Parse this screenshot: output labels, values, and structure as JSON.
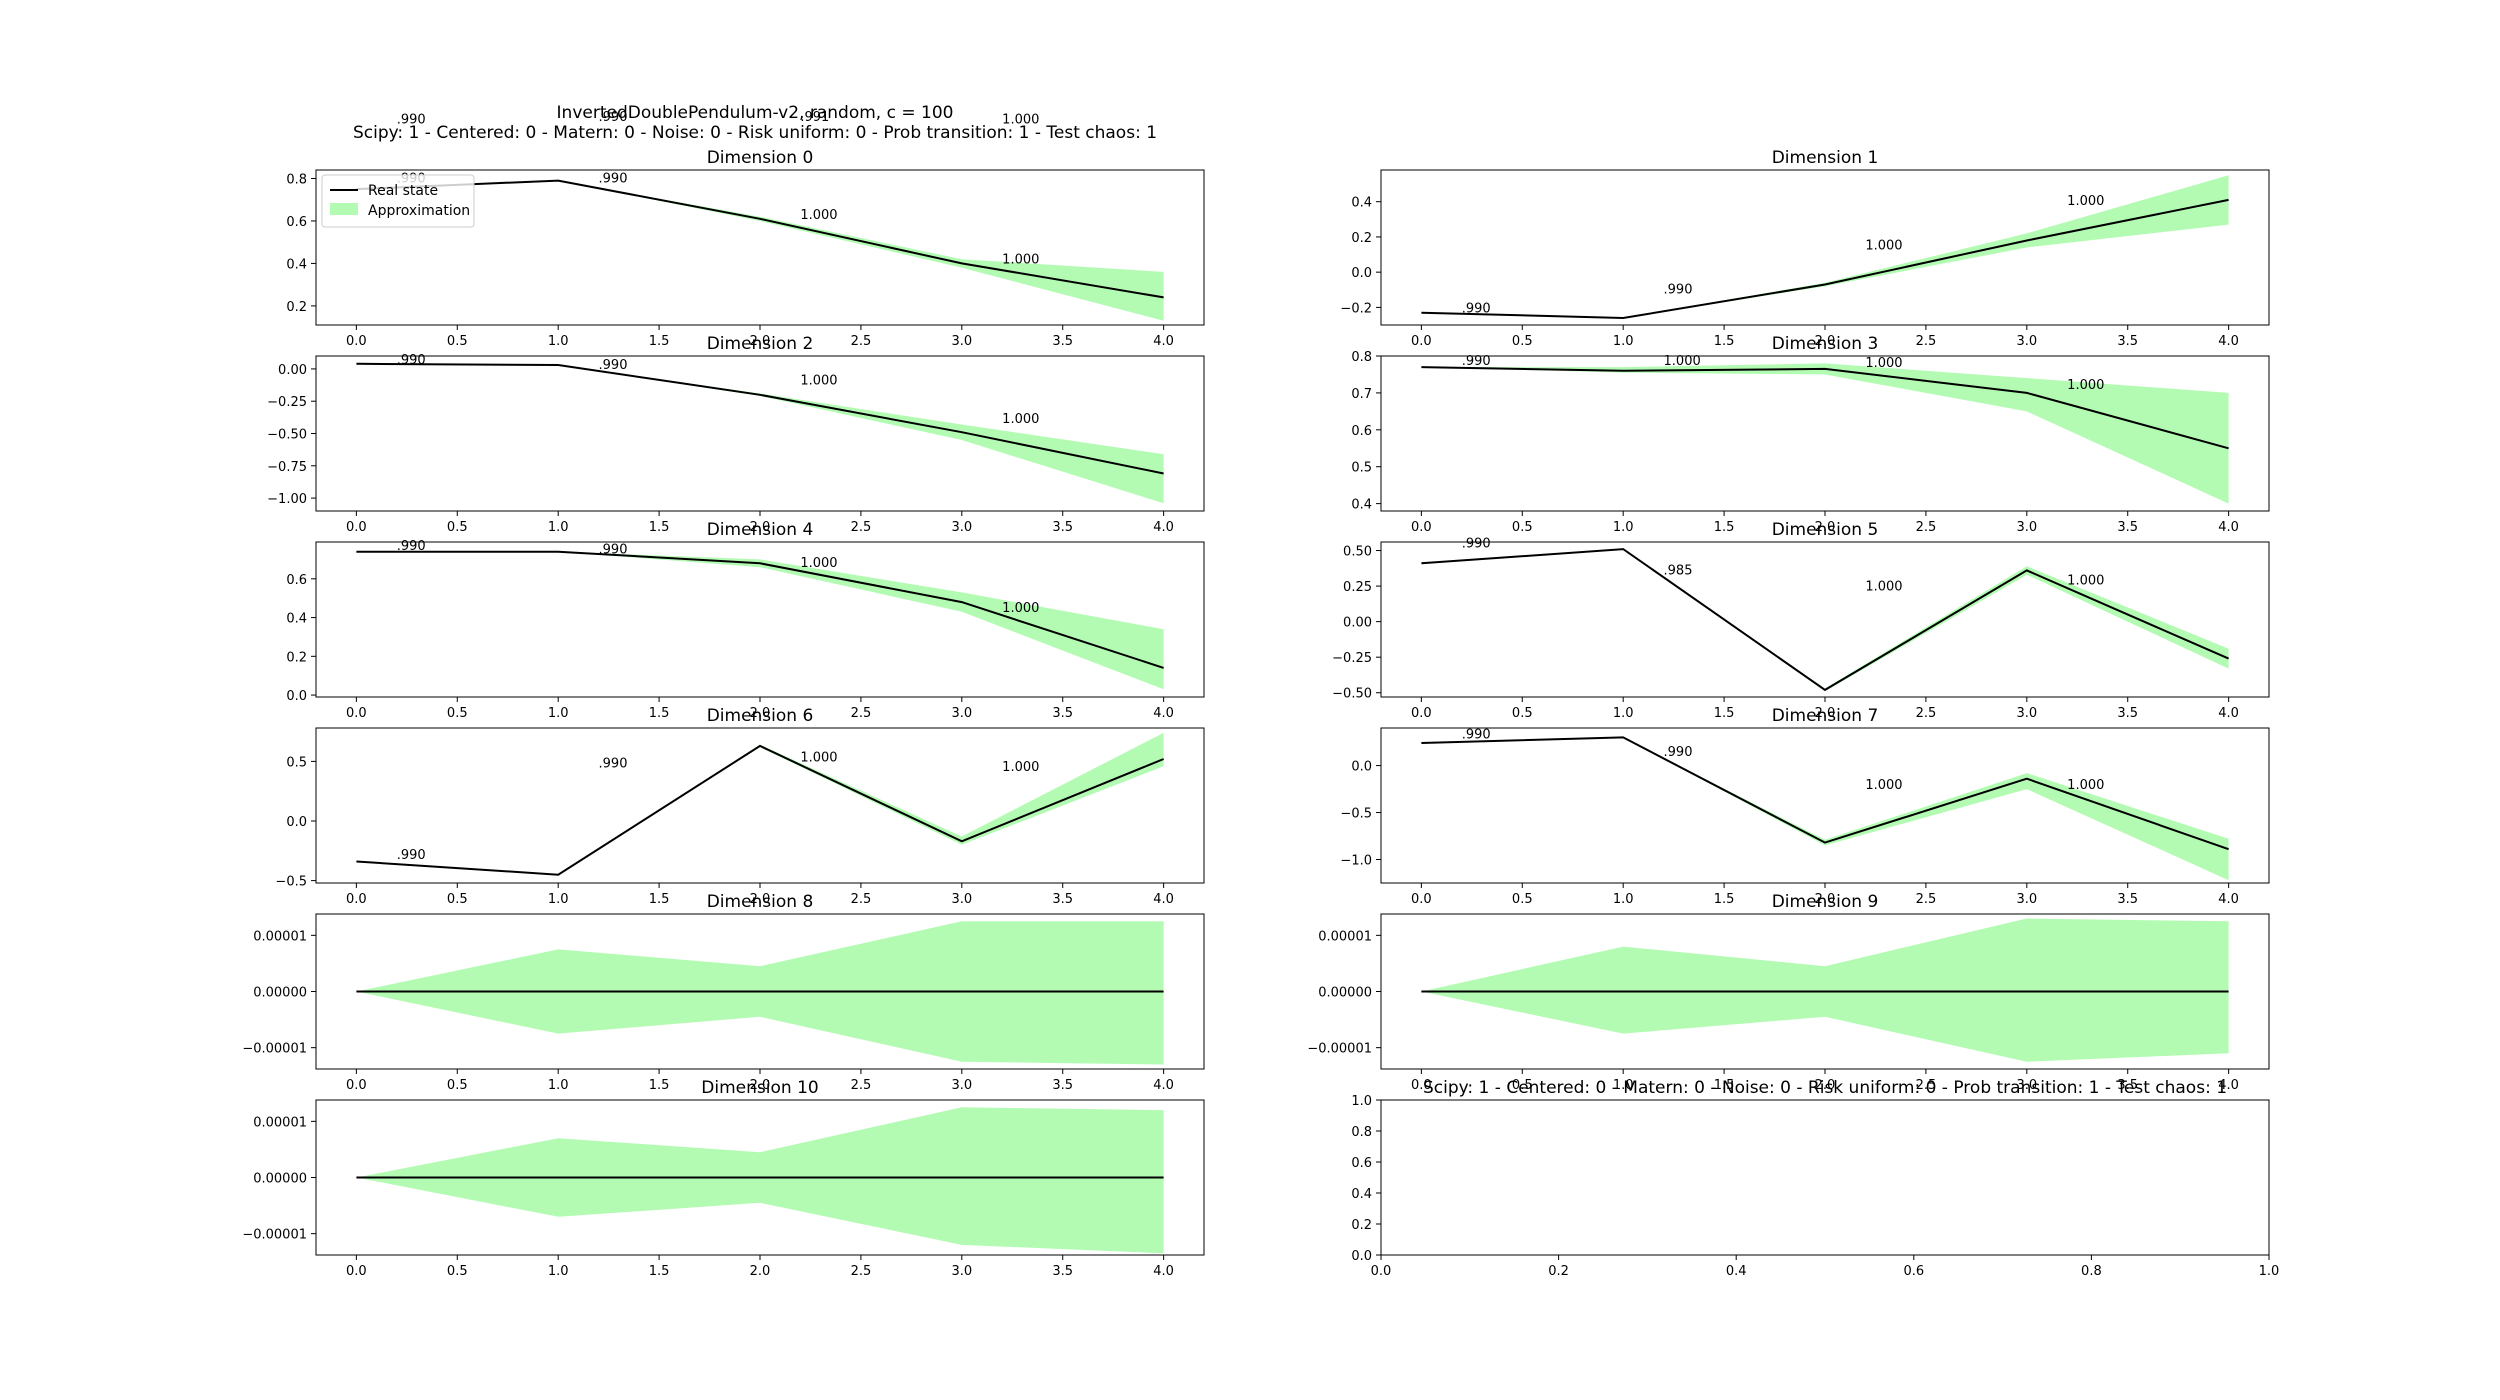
{
  "figure": {
    "title_line1": "InvertedDoublePendulum-v2, random, c = 100",
    "title_line2": "Scipy: 1 - Centered: 0 - Matern: 0 - Noise: 0 - Risk uniform: 0 - Prob transition: 1 - Test chaos: 1"
  },
  "legend": {
    "line_label": "Real state",
    "band_label": "Approximation"
  },
  "colors": {
    "line": "#000000",
    "band": "#b3fbb3"
  },
  "chart_data": [
    {
      "type": "area",
      "title": "Dimension 0",
      "x": [
        0,
        1,
        2,
        3,
        4
      ],
      "series": [
        {
          "name": "Real state",
          "values": [
            0.75,
            0.79,
            0.61,
            0.4,
            0.24
          ]
        },
        {
          "name": "Approximation",
          "lower": [
            0.75,
            0.79,
            0.6,
            0.38,
            0.13
          ],
          "upper": [
            0.75,
            0.79,
            0.62,
            0.42,
            0.36
          ]
        }
      ],
      "xticks": [
        "0.0",
        "0.5",
        "1.0",
        "1.5",
        "2.0",
        "2.5",
        "3.0",
        "3.5",
        "4.0"
      ],
      "xlim": [
        -0.2,
        4.2
      ],
      "yticks": [
        "0.2",
        "0.4",
        "0.6",
        "0.8"
      ],
      "ytick_values": [
        0.2,
        0.4,
        0.6,
        0.8
      ],
      "ylim": [
        0.11,
        0.84
      ],
      "annotations": [
        {
          "text": ".990",
          "x": 0.2,
          "y": 0.78
        },
        {
          "text": ".990",
          "x": 1.2,
          "y": 0.78
        },
        {
          "text": "1.000",
          "x": 2.2,
          "y": 0.61
        },
        {
          "text": "1.000",
          "x": 3.2,
          "y": 0.4
        },
        {
          "text": ".990",
          "x": 0.2,
          "y": 1.06
        },
        {
          "text": ".990",
          "x": 1.2,
          "y": 1.07
        },
        {
          "text": ".991",
          "x": 2.2,
          "y": 1.07
        },
        {
          "text": "1.000",
          "x": 3.2,
          "y": 1.06
        }
      ],
      "legend": true
    },
    {
      "type": "area",
      "title": "Dimension 1",
      "x": [
        0,
        1,
        2,
        3,
        4
      ],
      "series": [
        {
          "name": "Real state",
          "values": [
            -0.23,
            -0.26,
            -0.07,
            0.18,
            0.41
          ]
        },
        {
          "name": "Approximation",
          "lower": [
            -0.23,
            -0.26,
            -0.08,
            0.14,
            0.27
          ],
          "upper": [
            -0.23,
            -0.26,
            -0.06,
            0.22,
            0.55
          ]
        }
      ],
      "xticks": [
        "0.0",
        "0.5",
        "1.0",
        "1.5",
        "2.0",
        "2.5",
        "3.0",
        "3.5",
        "4.0"
      ],
      "xlim": [
        -0.2,
        4.2
      ],
      "yticks": [
        "−0.2",
        "0.0",
        "0.2",
        "0.4"
      ],
      "ytick_values": [
        -0.2,
        0,
        0.2,
        0.4
      ],
      "ylim": [
        -0.3,
        0.58
      ],
      "annotations": [
        {
          "text": ".990",
          "x": 0.2,
          "y": -0.23
        },
        {
          "text": ".990",
          "x": 1.2,
          "y": -0.12
        },
        {
          "text": "1.000",
          "x": 2.2,
          "y": 0.13
        },
        {
          "text": "1.000",
          "x": 3.2,
          "y": 0.38
        }
      ]
    },
    {
      "type": "area",
      "title": "Dimension 2",
      "x": [
        0,
        1,
        2,
        3,
        4
      ],
      "series": [
        {
          "name": "Real state",
          "values": [
            0.04,
            0.03,
            -0.2,
            -0.49,
            -0.81
          ]
        },
        {
          "name": "Approximation",
          "lower": [
            0.04,
            0.03,
            -0.21,
            -0.55,
            -1.04
          ],
          "upper": [
            0.04,
            0.03,
            -0.19,
            -0.43,
            -0.66
          ]
        }
      ],
      "xticks": [
        "0.0",
        "0.5",
        "1.0",
        "1.5",
        "2.0",
        "2.5",
        "3.0",
        "3.5",
        "4.0"
      ],
      "xlim": [
        -0.2,
        4.2
      ],
      "yticks": [
        "−1.00",
        "−0.75",
        "−0.50",
        "−0.25",
        "0.00"
      ],
      "ytick_values": [
        -1,
        -0.75,
        -0.5,
        -0.25,
        0
      ],
      "ylim": [
        -1.1,
        0.1
      ],
      "annotations": [
        {
          "text": ".990",
          "x": 0.2,
          "y": 0.04
        },
        {
          "text": ".990",
          "x": 1.2,
          "y": 0.0
        },
        {
          "text": "1.000",
          "x": 2.2,
          "y": -0.12
        },
        {
          "text": "1.000",
          "x": 3.2,
          "y": -0.42
        }
      ]
    },
    {
      "type": "area",
      "title": "Dimension 3",
      "x": [
        0,
        1,
        2,
        3,
        4
      ],
      "series": [
        {
          "name": "Real state",
          "values": [
            0.77,
            0.76,
            0.765,
            0.7,
            0.55
          ]
        },
        {
          "name": "Approximation",
          "lower": [
            0.77,
            0.755,
            0.75,
            0.65,
            0.4
          ],
          "upper": [
            0.77,
            0.77,
            0.78,
            0.74,
            0.7
          ]
        }
      ],
      "xticks": [
        "0.0",
        "0.5",
        "1.0",
        "1.5",
        "2.0",
        "2.5",
        "3.0",
        "3.5",
        "4.0"
      ],
      "xlim": [
        -0.2,
        4.2
      ],
      "yticks": [
        "0.4",
        "0.5",
        "0.6",
        "0.7",
        "0.8"
      ],
      "ytick_values": [
        0.4,
        0.5,
        0.6,
        0.7,
        0.8
      ],
      "ylim": [
        0.38,
        0.8
      ],
      "annotations": [
        {
          "text": ".990",
          "x": 0.2,
          "y": 0.775
        },
        {
          "text": "1.000",
          "x": 1.2,
          "y": 0.775
        },
        {
          "text": "1.000",
          "x": 2.2,
          "y": 0.77
        },
        {
          "text": "1.000",
          "x": 3.2,
          "y": 0.71
        }
      ]
    },
    {
      "type": "area",
      "title": "Dimension 4",
      "x": [
        0,
        1,
        2,
        3,
        4
      ],
      "series": [
        {
          "name": "Real state",
          "values": [
            0.74,
            0.74,
            0.68,
            0.48,
            0.14
          ]
        },
        {
          "name": "Approximation",
          "lower": [
            0.74,
            0.74,
            0.66,
            0.43,
            0.03
          ],
          "upper": [
            0.74,
            0.74,
            0.7,
            0.53,
            0.34
          ]
        }
      ],
      "xticks": [
        "0.0",
        "0.5",
        "1.0",
        "1.5",
        "2.0",
        "2.5",
        "3.0",
        "3.5",
        "4.0"
      ],
      "xlim": [
        -0.2,
        4.2
      ],
      "yticks": [
        "0.0",
        "0.2",
        "0.4",
        "0.6"
      ],
      "ytick_values": [
        0,
        0.2,
        0.4,
        0.6
      ],
      "ylim": [
        -0.01,
        0.79
      ],
      "annotations": [
        {
          "text": ".990",
          "x": 0.2,
          "y": 0.75
        },
        {
          "text": ".990",
          "x": 1.2,
          "y": 0.73
        },
        {
          "text": "1.000",
          "x": 2.2,
          "y": 0.66
        },
        {
          "text": "1.000",
          "x": 3.2,
          "y": 0.43
        }
      ]
    },
    {
      "type": "area",
      "title": "Dimension 5",
      "x": [
        0,
        1,
        2,
        3,
        4
      ],
      "series": [
        {
          "name": "Real state",
          "values": [
            0.41,
            0.51,
            -0.48,
            0.36,
            -0.26
          ]
        },
        {
          "name": "Approximation",
          "lower": [
            0.41,
            0.51,
            -0.49,
            0.33,
            -0.33
          ],
          "upper": [
            0.41,
            0.51,
            -0.47,
            0.39,
            -0.19
          ]
        }
      ],
      "xticks": [
        "0.0",
        "0.5",
        "1.0",
        "1.5",
        "2.0",
        "2.5",
        "3.0",
        "3.5",
        "4.0"
      ],
      "xlim": [
        -0.2,
        4.2
      ],
      "yticks": [
        "−0.50",
        "−0.25",
        "0.00",
        "0.25",
        "0.50"
      ],
      "ytick_values": [
        -0.5,
        -0.25,
        0,
        0.25,
        0.5
      ],
      "ylim": [
        -0.53,
        0.56
      ],
      "annotations": [
        {
          "text": ".990",
          "x": 0.2,
          "y": 0.52
        },
        {
          "text": ".985",
          "x": 1.2,
          "y": 0.33
        },
        {
          "text": "1.000",
          "x": 2.2,
          "y": 0.22
        },
        {
          "text": "1.000",
          "x": 3.2,
          "y": 0.26
        }
      ]
    },
    {
      "type": "area",
      "title": "Dimension 6",
      "x": [
        0,
        1,
        2,
        3,
        4
      ],
      "series": [
        {
          "name": "Real state",
          "values": [
            -0.34,
            -0.45,
            0.63,
            -0.17,
            0.52
          ]
        },
        {
          "name": "Approximation",
          "lower": [
            -0.34,
            -0.45,
            0.62,
            -0.2,
            0.46
          ],
          "upper": [
            -0.34,
            -0.45,
            0.64,
            -0.13,
            0.74
          ]
        }
      ],
      "xticks": [
        "0.0",
        "0.5",
        "1.0",
        "1.5",
        "2.0",
        "2.5",
        "3.0",
        "3.5",
        "4.0"
      ],
      "xlim": [
        -0.2,
        4.2
      ],
      "yticks": [
        "−0.5",
        "0.0",
        "0.5"
      ],
      "ytick_values": [
        -0.5,
        0,
        0.5
      ],
      "ylim": [
        -0.52,
        0.78
      ],
      "annotations": [
        {
          "text": ".990",
          "x": 0.2,
          "y": -0.32
        },
        {
          "text": ".990",
          "x": 1.2,
          "y": 0.45
        },
        {
          "text": "1.000",
          "x": 2.2,
          "y": 0.5
        },
        {
          "text": "1.000",
          "x": 3.2,
          "y": 0.42
        }
      ]
    },
    {
      "type": "area",
      "title": "Dimension 7",
      "x": [
        0,
        1,
        2,
        3,
        4
      ],
      "series": [
        {
          "name": "Real state",
          "values": [
            0.24,
            0.3,
            -0.82,
            -0.14,
            -0.89
          ]
        },
        {
          "name": "Approximation",
          "lower": [
            0.24,
            0.3,
            -0.85,
            -0.25,
            -1.22
          ],
          "upper": [
            0.24,
            0.3,
            -0.79,
            -0.08,
            -0.78
          ]
        }
      ],
      "xticks": [
        "0.0",
        "0.5",
        "1.0",
        "1.5",
        "2.0",
        "2.5",
        "3.0",
        "3.5",
        "4.0"
      ],
      "xlim": [
        -0.2,
        4.2
      ],
      "yticks": [
        "−1.0",
        "−0.5",
        "0.0"
      ],
      "ytick_values": [
        -1,
        -0.5,
        0
      ],
      "ylim": [
        -1.25,
        0.4
      ],
      "annotations": [
        {
          "text": ".990",
          "x": 0.2,
          "y": 0.29
        },
        {
          "text": ".990",
          "x": 1.2,
          "y": 0.1
        },
        {
          "text": "1.000",
          "x": 2.2,
          "y": -0.25
        },
        {
          "text": "1.000",
          "x": 3.2,
          "y": -0.25
        }
      ]
    },
    {
      "type": "area",
      "title": "Dimension 8",
      "x": [
        0,
        1,
        2,
        3,
        4
      ],
      "series": [
        {
          "name": "Real state",
          "values": [
            0,
            0,
            0,
            0,
            0
          ]
        },
        {
          "name": "Approximation",
          "lower": [
            0,
            -7.5e-06,
            -4.5e-06,
            -1.25e-05,
            -1.3e-05
          ],
          "upper": [
            0,
            7.5e-06,
            4.5e-06,
            1.25e-05,
            1.25e-05
          ]
        }
      ],
      "xticks": [
        "0.0",
        "0.5",
        "1.0",
        "1.5",
        "2.0",
        "2.5",
        "3.0",
        "3.5",
        "4.0"
      ],
      "xlim": [
        -0.2,
        4.2
      ],
      "yticks": [
        "−0.00001",
        "0.00000",
        "0.00001"
      ],
      "ytick_values": [
        -1e-05,
        0,
        1e-05
      ],
      "ylim": [
        -1.38e-05,
        1.38e-05
      ],
      "annotations": []
    },
    {
      "type": "area",
      "title": "Dimension 9",
      "x": [
        0,
        1,
        2,
        3,
        4
      ],
      "series": [
        {
          "name": "Real state",
          "values": [
            0,
            0,
            0,
            0,
            0
          ]
        },
        {
          "name": "Approximation",
          "lower": [
            0,
            -7.5e-06,
            -4.5e-06,
            -1.25e-05,
            -1.1e-05
          ],
          "upper": [
            0,
            8e-06,
            4.5e-06,
            1.3e-05,
            1.25e-05
          ]
        }
      ],
      "xticks": [
        "0.0",
        "0.5",
        "1.0",
        "1.5",
        "2.0",
        "2.5",
        "3.0",
        "3.5",
        "4.0"
      ],
      "xlim": [
        -0.2,
        4.2
      ],
      "yticks": [
        "−0.00001",
        "0.00000",
        "0.00001"
      ],
      "ytick_values": [
        -1e-05,
        0,
        1e-05
      ],
      "ylim": [
        -1.38e-05,
        1.38e-05
      ],
      "annotations": []
    },
    {
      "type": "area",
      "title": "Dimension 10",
      "x": [
        0,
        1,
        2,
        3,
        4
      ],
      "series": [
        {
          "name": "Real state",
          "values": [
            0,
            0,
            0,
            0,
            0
          ]
        },
        {
          "name": "Approximation",
          "lower": [
            0,
            -7e-06,
            -4.5e-06,
            -1.2e-05,
            -1.35e-05
          ],
          "upper": [
            0,
            7e-06,
            4.5e-06,
            1.25e-05,
            1.2e-05
          ]
        }
      ],
      "xticks": [
        "0.0",
        "0.5",
        "1.0",
        "1.5",
        "2.0",
        "2.5",
        "3.0",
        "3.5",
        "4.0"
      ],
      "xlim": [
        -0.2,
        4.2
      ],
      "yticks": [
        "−0.00001",
        "0.00000",
        "0.00001"
      ],
      "ytick_values": [
        -1e-05,
        0,
        1e-05
      ],
      "ylim": [
        -1.38e-05,
        1.38e-05
      ],
      "annotations": []
    },
    {
      "type": "area",
      "title": "Scipy: 1 - Centered: 0 - Matern: 0 - Noise: 0 - Risk uniform: 0 - Prob transition: 1 - Test chaos: 1",
      "x": [],
      "series": [],
      "xticks": [
        "0.0",
        "0.2",
        "0.4",
        "0.6",
        "0.8",
        "1.0"
      ],
      "xtick_values": [
        0,
        0.2,
        0.4,
        0.6,
        0.8,
        1.0
      ],
      "xlim": [
        0,
        1
      ],
      "yticks": [
        "0.0",
        "0.2",
        "0.4",
        "0.6",
        "0.8",
        "1.0"
      ],
      "ytick_values": [
        0,
        0.2,
        0.4,
        0.6,
        0.8,
        1.0
      ],
      "ylim": [
        0,
        1
      ],
      "annotations": []
    }
  ]
}
